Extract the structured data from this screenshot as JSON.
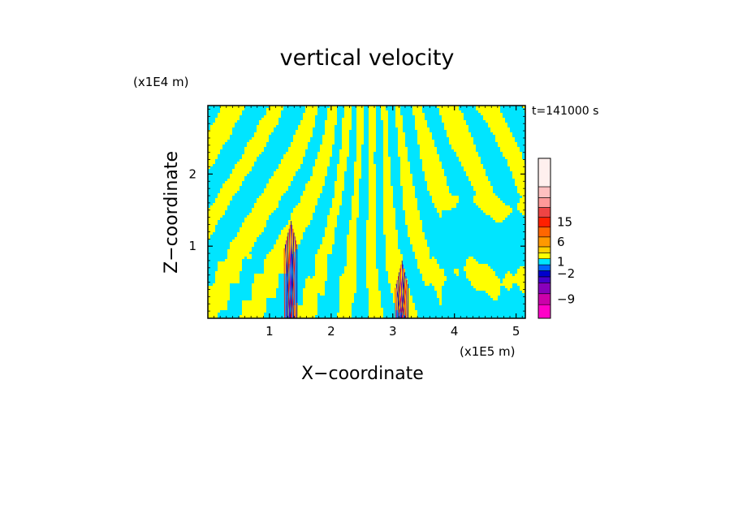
{
  "chart_data": {
    "type": "heatmap",
    "title": "vertical velocity",
    "xlabel": "X−coordinate",
    "ylabel": "Z−coordinate",
    "x_unit": "(x1E5 m)",
    "z_unit": "(x1E4 m)",
    "time_label": "t=141000 s",
    "xlim": [
      0,
      5.15
    ],
    "zlim": [
      0,
      2.95
    ],
    "x_ticks": [
      1,
      2,
      3,
      4,
      5
    ],
    "x_tick_labels": [
      "1",
      "2",
      "3",
      "4",
      "5"
    ],
    "z_ticks": [
      1,
      2
    ],
    "z_tick_labels": [
      "1",
      "2"
    ],
    "colorbar": {
      "levels": [
        -9,
        -2,
        1,
        6,
        15
      ],
      "level_labels": [
        "−9",
        "−2",
        "1",
        "6",
        "15"
      ],
      "colors": [
        "#ff00c8",
        "#cc00aa",
        "#8800bb",
        "#4400cc",
        "#0000cc",
        "#0066ff",
        "#00e5ff",
        "#ffff00",
        "#ffd000",
        "#ff9900",
        "#ff6600",
        "#ff2000",
        "#ee4444",
        "#ff9999",
        "#ffc0c0",
        "#fff0ee"
      ],
      "ticks_at": [
        1,
        4,
        6,
        9,
        11
      ]
    },
    "field_colors": {
      "negative": "#00e5ff",
      "positive": "#ffff00",
      "strong_negative": "#0000aa",
      "strong_positive": "#ff2000"
    },
    "plumes": [
      {
        "x_center": 1.35,
        "z_top": 1.35
      },
      {
        "x_center": 3.15,
        "z_top": 0.8
      }
    ]
  }
}
